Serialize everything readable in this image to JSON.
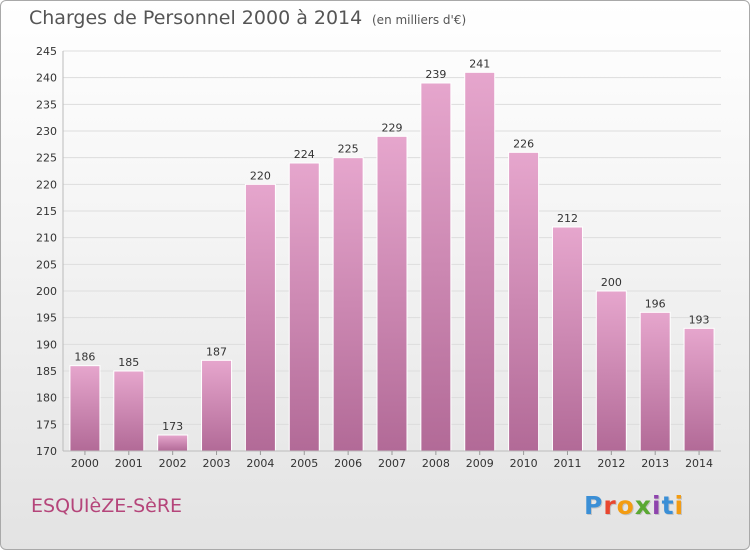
{
  "header": {
    "title": "Charges de Personnel 2000 à 2014",
    "unit_note": "(en milliers d'€)"
  },
  "footer": {
    "town": "ESQUIèZE-SèRE",
    "brand_letters": [
      "P",
      "r",
      "o",
      "x",
      "i",
      "t",
      "i"
    ],
    "brand_colors": [
      "#3b8fd6",
      "#e8462f",
      "#f39c12",
      "#5aa832",
      "#8e44ad",
      "#3b8fd6",
      "#f39c12"
    ]
  },
  "colors": {
    "bar_top": "#e6a6cd",
    "bar_bottom": "#b26a97",
    "bar_edge": "#ffffff",
    "grid": "#dddddd",
    "axis_text": "#333333",
    "town": "#b5457a"
  },
  "chart_data": {
    "type": "bar",
    "title": "Charges de Personnel 2000 à 2014",
    "subtitle": "(en milliers d'€)",
    "categories": [
      "2000",
      "2001",
      "2002",
      "2003",
      "2004",
      "2005",
      "2006",
      "2007",
      "2008",
      "2009",
      "2010",
      "2011",
      "2012",
      "2013",
      "2014"
    ],
    "values": [
      186,
      185,
      173,
      187,
      220,
      224,
      225,
      229,
      239,
      241,
      226,
      212,
      200,
      196,
      193
    ],
    "value_labels": [
      "186",
      "185",
      "173",
      "187",
      "220",
      "224",
      "225",
      "229",
      "239",
      "241",
      "226",
      "212",
      "200",
      "196",
      "193"
    ],
    "ylim": [
      170,
      245
    ],
    "yticks": [
      170,
      175,
      180,
      185,
      190,
      195,
      200,
      205,
      210,
      215,
      220,
      225,
      230,
      235,
      240,
      245
    ],
    "grid": true,
    "legend": "none"
  }
}
